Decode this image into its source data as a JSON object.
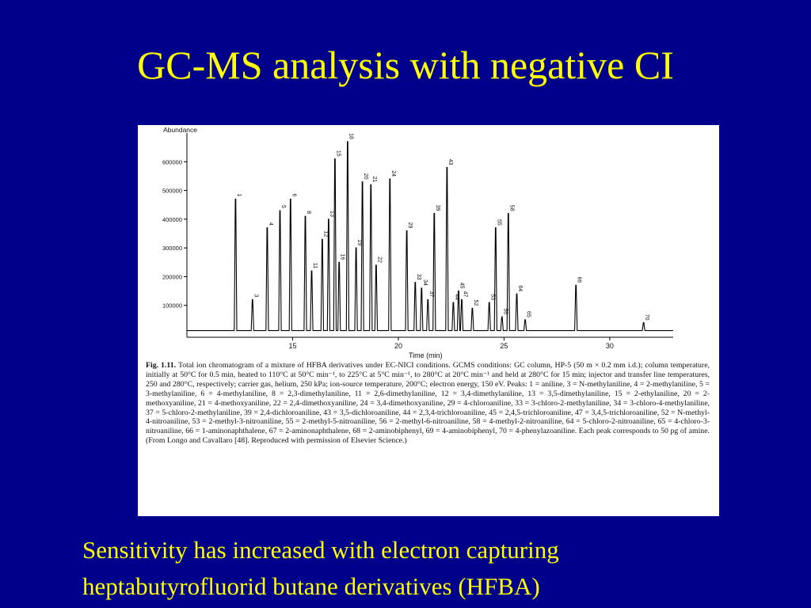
{
  "slide": {
    "title": "GC-MS analysis with negative CI",
    "bottom_lines": [
      "Sensitivity has increased with electron capturing",
      "heptabutyrofluorid butane derivatives (HFBA)"
    ]
  },
  "colors": {
    "background": "#00008b",
    "text": "#ffff00",
    "figure_background": "#ffffff",
    "trace": "#000000"
  },
  "figure": {
    "caption_label": "Fig. 1.11.",
    "caption_text": "Total ion chromatogram of a mixture of HFBA derivatives under EC-NICI conditions. GCMS conditions: GC column, HP-5 (50 m × 0.2 mm i.d.); column temperature, initially at 50°C for 0.5 min, heated to 110°C at 50°C min⁻¹, to 225°C at 5°C min⁻¹, to 280°C at 20°C min⁻¹ and held at 280°C for 15 min; injector and transfer line temperatures, 250 and 280°C, respectively; carrier gas, helium, 250 kPa; ion-source temperature, 200°C; electron energy, 150 eV. Peaks: 1 = aniline, 3 = N-methylaniline, 4 = 2-methylaniline, 5 = 3-methylaniline, 6 = 4-methylaniline, 8 = 2,3-dimethylaniline, 11 = 2,6-dimethylaniline, 12 = 3,4-dimethylaniline, 13 = 3,5-dimethylaniline, 15 = 2-ethylaniline, 20 = 2-methoxyaniline, 21 = 4-methoxyaniline, 22 = 2,4-dimethoxyaniline, 24 = 3,4-dimethoxyaniline, 29 = 4-chloroaniline, 33 = 3-chloro-2-methylaniline, 34 = 3-chloro-4-methylaniline, 37 = 5-chloro-2-methylaniline, 39 = 2,4-dichloroaniline, 43 = 3,5-dichloroaniline, 44 = 2,3,4-trichloroaniline, 45 = 2,4,5-trichloroaniline, 47 = 3,4,5-trichloroaniline, 52 = N-methyl-4-nitroaniline, 53 = 2-methyl-3-nitroaniline, 55 = 2-methyl-5-nitroaniline, 56 = 2-methyl-6-nitroaniline, 58 = 4-methyl-2-nitroaniline, 64 = 5-chloro-2-nitroaniline, 65 = 4-chloro-3-nitroaniline, 66 = 1-aminonaphthalene, 67 = 2-aminonaphthalene, 68 = 2-aminobiphenyl, 69 = 4-aminobiphenyl, 70 = 4-phenylazoaniline. Each peak corresponds to 50 pg of amine. (From Longo and Cavallaro [48]. Reproduced with permission of Elsevier Science.)"
  },
  "chart_data": {
    "type": "line",
    "ylabel": "Abundance",
    "xlabel": "Time (min)",
    "xlim": [
      10,
      33
    ],
    "ylim": [
      0,
      700000
    ],
    "yticks": [
      100000,
      200000,
      300000,
      400000,
      500000,
      600000
    ],
    "ytick_labels": [
      "100000",
      "200000",
      "300000",
      "400000",
      "500000",
      "600000"
    ],
    "xticks": [
      15,
      20,
      25,
      30
    ],
    "xtick_labels": [
      "15",
      "20",
      "25",
      "30"
    ],
    "grid": false,
    "peaks": [
      {
        "label": "1",
        "t": 12.3,
        "y": 470000
      },
      {
        "label": "3",
        "t": 13.1,
        "y": 120000
      },
      {
        "label": "4",
        "t": 13.8,
        "y": 370000
      },
      {
        "label": "5",
        "t": 14.4,
        "y": 430000
      },
      {
        "label": "6",
        "t": 14.9,
        "y": 470000
      },
      {
        "label": "8",
        "t": 15.6,
        "y": 410000
      },
      {
        "label": "11",
        "t": 15.9,
        "y": 220000
      },
      {
        "label": "12",
        "t": 16.4,
        "y": 330000
      },
      {
        "label": "13",
        "t": 16.7,
        "y": 400000
      },
      {
        "label": "15",
        "t": 17.0,
        "y": 610000
      },
      {
        "label": "16",
        "t": 17.2,
        "y": 250000
      },
      {
        "label": "18",
        "t": 17.6,
        "y": 670000
      },
      {
        "label": "19",
        "t": 18.0,
        "y": 300000
      },
      {
        "label": "20",
        "t": 18.3,
        "y": 530000
      },
      {
        "label": "21",
        "t": 18.7,
        "y": 520000
      },
      {
        "label": "22",
        "t": 18.95,
        "y": 240000
      },
      {
        "label": "24",
        "t": 19.6,
        "y": 540000
      },
      {
        "label": "29",
        "t": 20.4,
        "y": 360000
      },
      {
        "label": "33",
        "t": 20.8,
        "y": 180000
      },
      {
        "label": "34",
        "t": 21.1,
        "y": 160000
      },
      {
        "label": "37",
        "t": 21.4,
        "y": 120000
      },
      {
        "label": "39",
        "t": 21.7,
        "y": 420000
      },
      {
        "label": "43",
        "t": 22.3,
        "y": 580000
      },
      {
        "label": "44",
        "t": 22.6,
        "y": 110000
      },
      {
        "label": "45",
        "t": 22.85,
        "y": 150000
      },
      {
        "label": "47",
        "t": 23.0,
        "y": 120000
      },
      {
        "label": "52",
        "t": 23.5,
        "y": 90000
      },
      {
        "label": "53",
        "t": 24.3,
        "y": 110000
      },
      {
        "label": "55",
        "t": 24.6,
        "y": 370000
      },
      {
        "label": "56",
        "t": 24.9,
        "y": 60000
      },
      {
        "label": "58",
        "t": 25.2,
        "y": 420000
      },
      {
        "label": "64",
        "t": 25.6,
        "y": 140000
      },
      {
        "label": "65",
        "t": 26.0,
        "y": 50000
      },
      {
        "label": "66",
        "t": 28.4,
        "y": 170000
      },
      {
        "label": "70",
        "t": 31.6,
        "y": 40000
      }
    ]
  }
}
